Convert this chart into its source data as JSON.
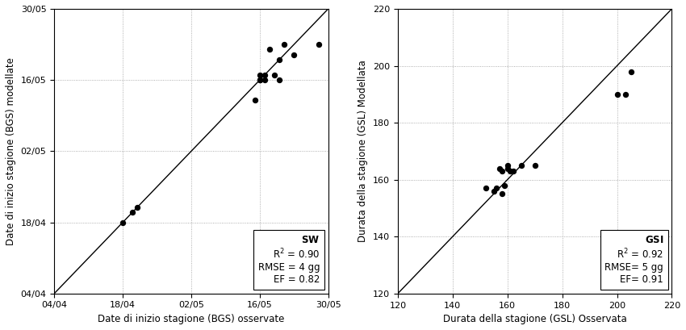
{
  "plot1": {
    "xlabel": "Date di inizio stagione (BGS) osservate",
    "ylabel": "Date di inizio stagione (BGS) modellate",
    "x_ticks_labels": [
      "04/04",
      "18/04",
      "02/05",
      "16/05",
      "30/05"
    ],
    "x_ticks_doy": [
      94,
      108,
      122,
      136,
      150
    ],
    "xlim_doy": [
      94,
      150
    ],
    "ylim_doy": [
      94,
      150
    ],
    "points_x_doy": [
      108,
      110,
      111,
      135,
      136,
      136,
      136,
      137,
      137,
      138,
      139,
      140,
      140,
      141,
      143,
      148
    ],
    "points_y_doy": [
      108,
      110,
      111,
      132,
      136,
      136,
      137,
      136,
      137,
      142,
      137,
      136,
      140,
      143,
      141,
      143
    ],
    "stats_label": "SW",
    "stats_r2": "R$^2$ = 0.90",
    "stats_rmse": "RMSE = 4 gg",
    "stats_ef": "EF = 0.82"
  },
  "plot2": {
    "xlabel": "Durata della stagione (GSL) Osservata",
    "ylabel": "Durata della stagione (GSL) Modellata",
    "xlim": [
      120,
      220
    ],
    "ylim": [
      120,
      220
    ],
    "x_ticks": [
      120,
      140,
      160,
      180,
      200,
      220
    ],
    "points_x": [
      152,
      155,
      156,
      157,
      158,
      158,
      159,
      160,
      160,
      161,
      162,
      165,
      170,
      200,
      203,
      205
    ],
    "points_y": [
      157,
      156,
      157,
      164,
      155,
      163,
      158,
      164,
      165,
      163,
      163,
      165,
      165,
      190,
      190,
      198
    ],
    "stats_label": "GSI",
    "stats_r2": "R$^2$ = 0.92",
    "stats_rmse": "RMSE= 5 gg",
    "stats_ef": "EF= 0.91"
  },
  "dot_color": "#000000",
  "dot_size": 28,
  "line_color": "#000000",
  "grid_color": "#999999",
  "bg_color": "#ffffff",
  "font_size_label": 8.5,
  "font_size_tick": 8,
  "font_size_stats": 8.5,
  "font_size_stats_title": 9
}
